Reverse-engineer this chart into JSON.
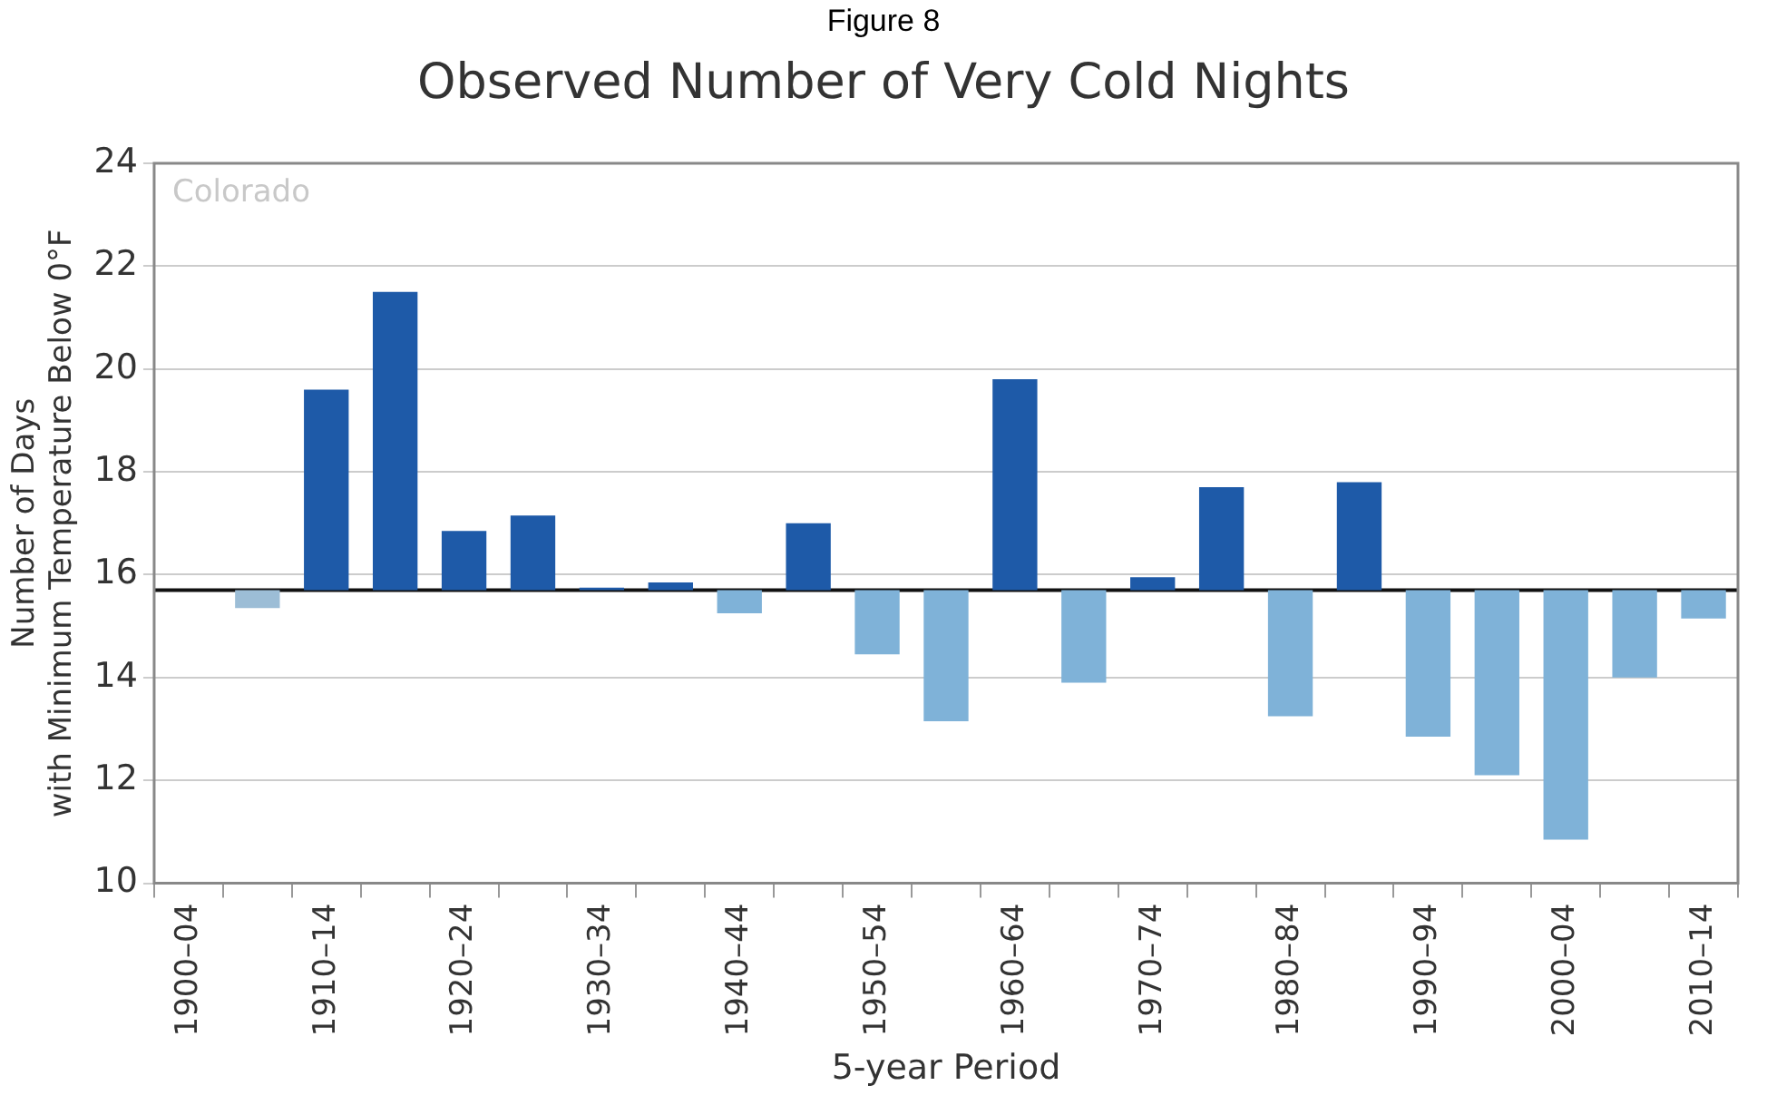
{
  "chart_data": {
    "type": "bar",
    "title": "Observed Number of Very Cold Nights",
    "xlabel": "5-year Period",
    "ylabel": "Number of Days\nwith Minimum Temperature Below 0°F",
    "annotations": [
      "Figure 8",
      "Colorado"
    ],
    "categories": [
      "1900–04",
      null,
      "1910–14",
      null,
      "1920–24",
      null,
      "1930–34",
      null,
      "1940–44",
      null,
      "1950–54",
      null,
      "1960–64",
      null,
      "1970–74",
      null,
      "1980–84",
      null,
      "1990–94",
      null,
      "2000–04",
      null,
      "2010–14"
    ],
    "base": [
      null,
      15.7,
      15.7,
      15.7,
      15.7,
      15.7,
      15.7,
      15.7,
      15.7,
      15.7,
      15.7,
      15.7,
      15.7,
      15.7,
      15.7,
      15.7,
      15.7,
      15.7,
      15.7,
      15.7,
      15.7,
      15.7,
      15.7
    ],
    "values": [
      null,
      -0.35,
      3.9,
      5.8,
      1.15,
      1.45,
      0.05,
      0.15,
      -0.45,
      1.3,
      -1.25,
      -2.55,
      4.1,
      -1.8,
      0.25,
      2.0,
      -2.45,
      2.1,
      -2.85,
      -3.6,
      -4.85,
      -1.7,
      -0.55
    ],
    "colors": [
      "#1e5aa8",
      "#9cbdd6",
      "#1e5aa8",
      "#1e5aa8",
      "#1e5aa8",
      "#1e5aa8",
      "#1e5aa8",
      "#1e5aa8",
      "#7fb2d8",
      "#1e5aa8",
      "#7fb2d8",
      "#7fb2d8",
      "#1e5aa8",
      "#7fb2d8",
      "#1e5aa8",
      "#1e5aa8",
      "#7fb2d8",
      "#1e5aa8",
      "#7fb2d8",
      "#7fb2d8",
      "#7fb2d8",
      "#7fb2d8",
      "#7fb2d8"
    ],
    "ref_lines": [
      {
        "axis": "y",
        "value": 15.7,
        "color": "#111111"
      }
    ],
    "ylim": [
      10,
      24
    ],
    "yticks": [
      10,
      12,
      14,
      16,
      18,
      20,
      22,
      24
    ],
    "grid": "y",
    "legend": false
  }
}
